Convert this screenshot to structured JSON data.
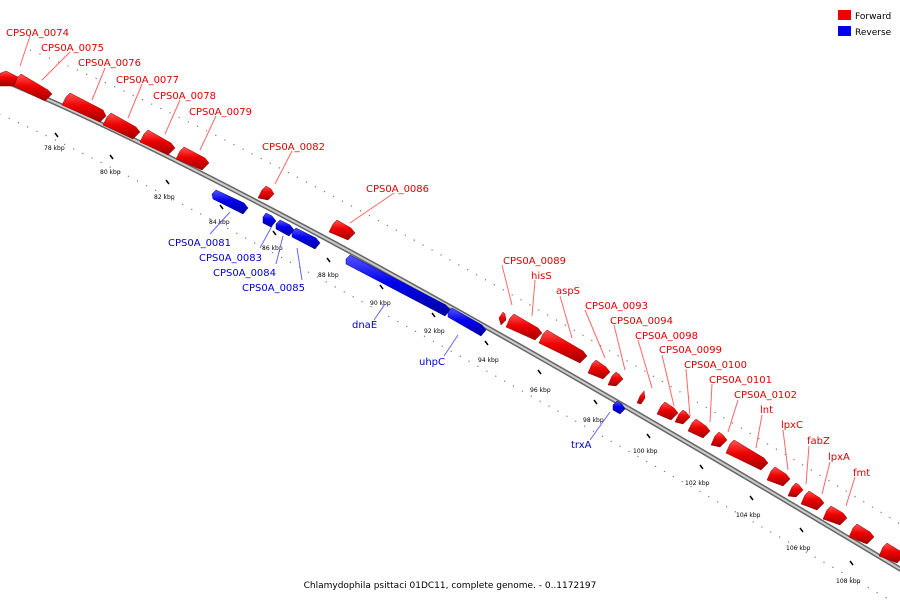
{
  "caption": "Chlamydophila psittaci 01DC11, complete genome. - 0..1172197",
  "legend": {
    "forward": {
      "label": "Forward",
      "color": "#ee0000"
    },
    "reverse": {
      "label": "Reverse",
      "color": "#0000ee"
    }
  },
  "ticks": [
    "78 kbp",
    "80 kbp",
    "82 kbp",
    "84 kbp",
    "86 kbp",
    "88 kbp",
    "90 kbp",
    "92 kbp",
    "94 kbp",
    "96 kbp",
    "98 kbp",
    "100 kbp",
    "102 kbp",
    "104 kbp",
    "106 kbp",
    "108 kbp"
  ],
  "genes": {
    "forward": [
      "CPS0A_0074",
      "CPS0A_0075",
      "CPS0A_0076",
      "CPS0A_0077",
      "CPS0A_0078",
      "CPS0A_0079",
      "CPS0A_0082",
      "CPS0A_0086",
      "CPS0A_0089",
      "hisS",
      "aspS",
      "CPS0A_0093",
      "CPS0A_0094",
      "CPS0A_0098",
      "CPS0A_0099",
      "CPS0A_0100",
      "CPS0A_0101",
      "CPS0A_0102",
      "lnt",
      "lpxC",
      "fabZ",
      "lpxA",
      "fmt"
    ],
    "reverse": [
      "CPS0A_0081",
      "CPS0A_0083",
      "CPS0A_0084",
      "CPS0A_0085",
      "dnaE",
      "uhpC",
      "trxA"
    ]
  }
}
